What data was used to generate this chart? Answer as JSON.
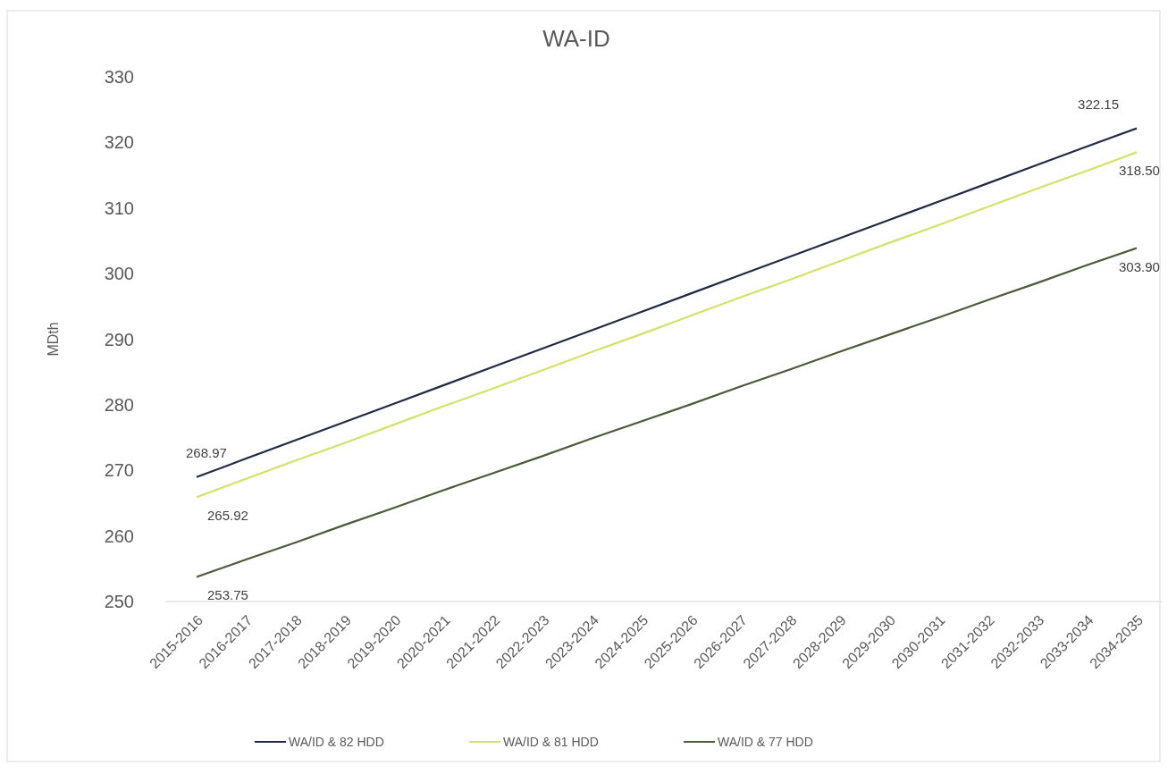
{
  "chart_data": {
    "type": "line",
    "title": "WA-ID",
    "ylabel": "MDth",
    "categories": [
      "2015-2016",
      "2016-2017",
      "2017-2018",
      "2018-2019",
      "2019-2020",
      "2020-2021",
      "2021-2022",
      "2022-2023",
      "2023-2024",
      "2024-2025",
      "2025-2026",
      "2026-2027",
      "2027-2028",
      "2028-2029",
      "2029-2030",
      "2030-2031",
      "2031-2032",
      "2032-2033",
      "2033-2034",
      "2034-2035"
    ],
    "series": [
      {
        "name": "WA/ID & 82 HDD",
        "color": "#1f2a44",
        "values": [
          268.97,
          271.8,
          274.6,
          277.4,
          280.2,
          283,
          285.8,
          288.6,
          291.4,
          294.2,
          297,
          299.8,
          302.6,
          305.4,
          308.2,
          311,
          313.8,
          316.6,
          319.4,
          322.15
        ],
        "value_labels": [
          "268.97",
          null,
          null,
          null,
          null,
          null,
          null,
          null,
          null,
          null,
          null,
          null,
          null,
          null,
          null,
          null,
          null,
          null,
          null,
          "322.15"
        ]
      },
      {
        "name": "WA/ID & 81 HDD",
        "color": "#d4e06a",
        "values": [
          265.92,
          268.7,
          271.5,
          274.2,
          277,
          279.8,
          282.5,
          285.3,
          288.1,
          290.8,
          293.6,
          296.4,
          299.1,
          301.9,
          304.7,
          307.4,
          310.2,
          313,
          315.7,
          318.5
        ],
        "value_labels": [
          "265.92",
          null,
          null,
          null,
          null,
          null,
          null,
          null,
          null,
          null,
          null,
          null,
          null,
          null,
          null,
          null,
          null,
          null,
          null,
          "318.50"
        ]
      },
      {
        "name": "WA/ID & 77 HDD",
        "color": "#4a5a3a",
        "values": [
          253.75,
          256.4,
          259,
          261.7,
          264.3,
          267,
          269.6,
          272.2,
          274.9,
          277.5,
          280.1,
          282.8,
          285.4,
          288.1,
          290.7,
          293.3,
          296,
          298.6,
          301.3,
          303.9
        ],
        "value_labels": [
          "253.75",
          null,
          null,
          null,
          null,
          null,
          null,
          null,
          null,
          null,
          null,
          null,
          null,
          null,
          null,
          null,
          null,
          null,
          null,
          "303.90"
        ]
      }
    ],
    "ylim": [
      250,
      330
    ],
    "yticks": [
      250,
      260,
      270,
      280,
      290,
      300,
      310,
      320,
      330
    ],
    "legend": "bottom",
    "line_style": "solid"
  }
}
